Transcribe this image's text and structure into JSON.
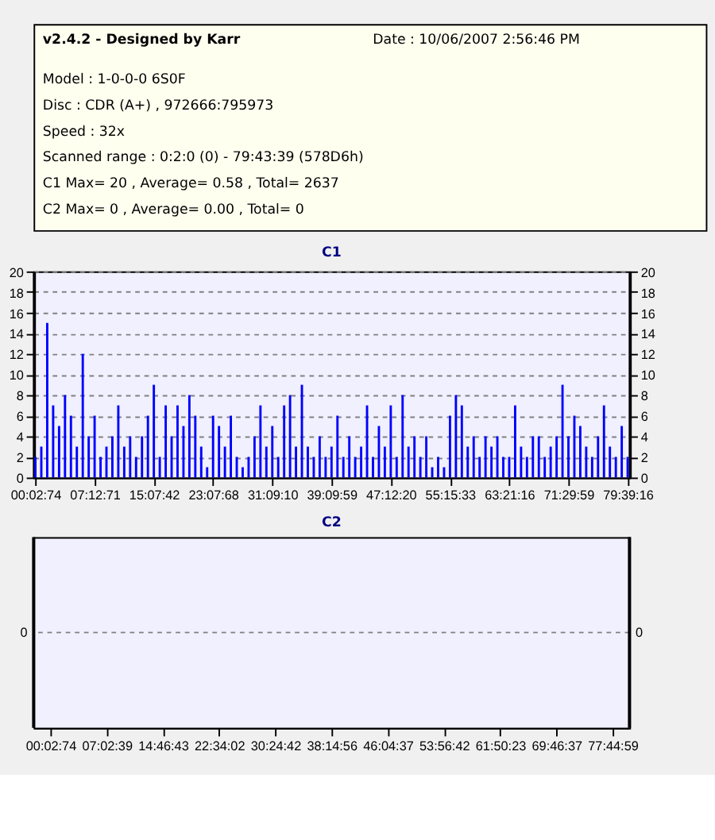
{
  "chart_data": [
    {
      "type": "other",
      "title": "v2.4.2 - Designed by Karr",
      "annotations": [
        "Date : 10/06/2007 2:56:46 PM",
        "Model : 1-0-0-0 6S0F",
        "Disc : CDR (A+) , 972666:795973",
        "Speed : 32x",
        "Scanned range : 0:2:0 (0) - 79:43:39 (578D6h)",
        "C1 Max= 20 , Average= 0.58 , Total= 2637",
        "C2 Max= 0 , Average= 0.00 , Total= 0"
      ]
    },
    {
      "type": "bar",
      "title": "C1",
      "categories": [
        "00:02:74",
        null,
        null,
        null,
        null,
        null,
        null,
        null,
        null,
        null,
        "07:12:71",
        null,
        null,
        null,
        null,
        null,
        null,
        null,
        null,
        null,
        "15:07:42",
        null,
        null,
        null,
        null,
        null,
        null,
        null,
        null,
        null,
        "23:07:68",
        null,
        null,
        null,
        null,
        null,
        null,
        null,
        null,
        null,
        "31:09:10",
        null,
        null,
        null,
        null,
        null,
        null,
        null,
        null,
        null,
        "39:09:59",
        null,
        null,
        null,
        null,
        null,
        null,
        null,
        null,
        null,
        "47:12:20",
        null,
        null,
        null,
        null,
        null,
        null,
        null,
        null,
        null,
        "55:15:33",
        null,
        null,
        null,
        null,
        null,
        null,
        null,
        null,
        null,
        "63:21:16",
        null,
        null,
        null,
        null,
        null,
        null,
        null,
        null,
        null,
        "71:29:59",
        null,
        null,
        null,
        null,
        null,
        null,
        null,
        null,
        null,
        "79:39:16"
      ],
      "series": [
        {
          "color": "#0000ff",
          "values": [
            2,
            3,
            15,
            7,
            5,
            8,
            6,
            3,
            12,
            4,
            6,
            2,
            3,
            4,
            7,
            3,
            4,
            2,
            4,
            6,
            9,
            2,
            7,
            4,
            7,
            5,
            8,
            6,
            3,
            1,
            6,
            5,
            3,
            6,
            2,
            1,
            2,
            4,
            7,
            3,
            5,
            2,
            7,
            8,
            3,
            9,
            3,
            2,
            4,
            2,
            3,
            6,
            2,
            4,
            2,
            3,
            7,
            2,
            5,
            3,
            7,
            2,
            8,
            3,
            4,
            2,
            4,
            1,
            2,
            1,
            6,
            8,
            7,
            3,
            4,
            2,
            4,
            3,
            4,
            2,
            2,
            7,
            3,
            2,
            4,
            4,
            2,
            3,
            4,
            9,
            4,
            6,
            5,
            3,
            2,
            4,
            7,
            3,
            2,
            5,
            2
          ]
        }
      ],
      "ylim": [
        0,
        20
      ],
      "yticks": [
        0,
        2,
        4,
        6,
        8,
        10,
        12,
        14,
        16,
        18,
        20
      ],
      "y2lim": [
        0,
        20
      ],
      "y2ticks": [
        0,
        2,
        4,
        6,
        8,
        10,
        12,
        14,
        16,
        18,
        20
      ],
      "grid": "y"
    },
    {
      "type": "other",
      "title": "C2",
      "categories": [
        "00:02:74",
        "07:02:39",
        "14:46:43",
        "22:34:02",
        "30:24:42",
        "38:14:56",
        "46:04:37",
        "53:56:42",
        "61:50:23",
        "69:46:37",
        "77:44:59"
      ],
      "annotations": [
        "0",
        "0"
      ]
    }
  ]
}
